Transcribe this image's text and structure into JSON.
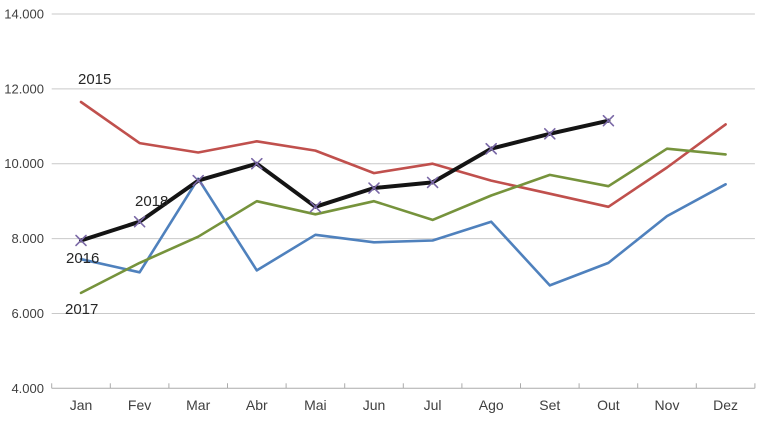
{
  "chart_data": {
    "type": "line",
    "title": "",
    "xlabel": "",
    "ylabel": "",
    "categories": [
      "Jan",
      "Fev",
      "Mar",
      "Abr",
      "Mai",
      "Jun",
      "Jul",
      "Ago",
      "Set",
      "Out",
      "Nov",
      "Dez"
    ],
    "series": [
      {
        "name": "2015",
        "color": "#C0504D",
        "line_width": 2.6,
        "marker": "none",
        "values": [
          11650,
          10550,
          10300,
          10600,
          10350,
          9750,
          10000,
          9550,
          9200,
          8850,
          9900,
          11050
        ]
      },
      {
        "name": "2016",
        "color": "#4F81BD",
        "line_width": 2.6,
        "marker": "none",
        "values": [
          7450,
          7100,
          9600,
          7150,
          8100,
          7900,
          7950,
          8450,
          6750,
          7350,
          8600,
          9450
        ]
      },
      {
        "name": "2017",
        "color": "#76933C",
        "line_width": 2.6,
        "marker": "none",
        "values": [
          6550,
          7350,
          8050,
          9000,
          8650,
          9000,
          8500,
          9150,
          9700,
          9400,
          10400,
          10250
        ]
      },
      {
        "name": "2018",
        "color": "#141414",
        "line_width": 4,
        "marker": "x",
        "marker_color": "#7A68A6",
        "values": [
          7950,
          8450,
          9550,
          10000,
          8850,
          9350,
          9500,
          10400,
          10800,
          11150,
          null,
          null
        ]
      }
    ],
    "ylim": [
      4000,
      14000
    ],
    "yticks": [
      {
        "value": 14000,
        "label": "14.000"
      },
      {
        "value": 12000,
        "label": "12.000"
      },
      {
        "value": 10000,
        "label": "10.000"
      },
      {
        "value": 8000,
        "label": "8.000"
      },
      {
        "value": 6000,
        "label": "6.000"
      },
      {
        "value": 4000,
        "label": "4.000"
      }
    ],
    "grid": true,
    "legend_position": "inline-labels-on-lines",
    "colors": {
      "gridline": "#C9C9C9",
      "axis_line": "#ABABAB",
      "tick_text": "#404040",
      "background": "#FFFFFF"
    }
  }
}
